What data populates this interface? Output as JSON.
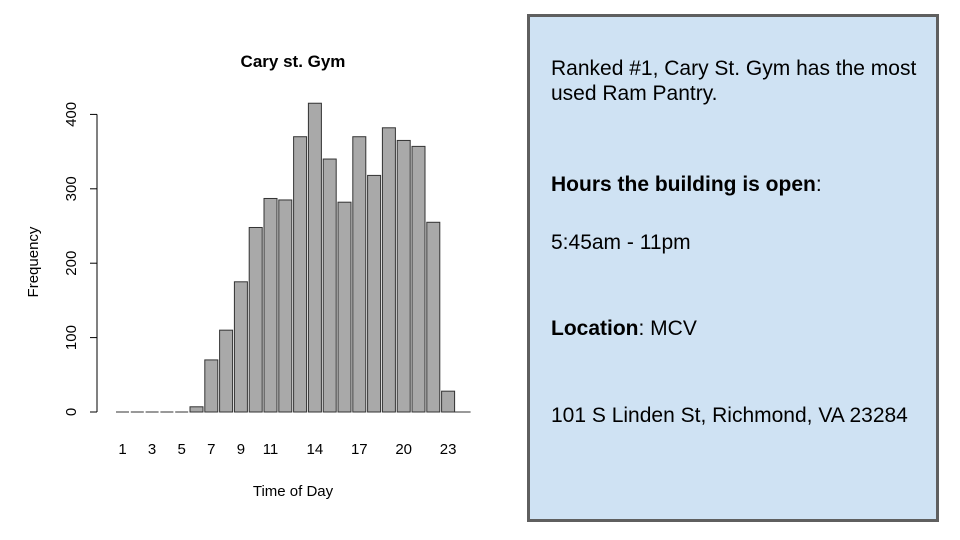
{
  "chart_data": {
    "type": "bar",
    "title": "Cary st. Gym",
    "xlabel": "Time of Day",
    "ylabel": "Frequency",
    "categories": [
      "1",
      "2",
      "3",
      "4",
      "5",
      "6",
      "7",
      "8",
      "9",
      "10",
      "11",
      "12",
      "13",
      "14",
      "15",
      "16",
      "17",
      "18",
      "19",
      "20",
      "21",
      "22",
      "23"
    ],
    "x_tick_labels": [
      "1",
      "3",
      "5",
      "7",
      "9",
      "11",
      "14",
      "17",
      "20",
      "23"
    ],
    "y_ticks": [
      0,
      100,
      200,
      300,
      400
    ],
    "values": [
      0,
      0,
      0,
      0,
      0,
      7,
      70,
      110,
      175,
      248,
      287,
      285,
      370,
      415,
      340,
      282,
      370,
      318,
      382,
      365,
      357,
      255,
      28
    ],
    "ylim": [
      0,
      420
    ],
    "grid": false,
    "colors": {
      "bar_fill": "#a9a9a9",
      "bar_stroke": "#333333"
    }
  },
  "info_panel": {
    "ranking_text": "Ranked #1, Cary St. Gym has the most used Ram Pantry.",
    "hours_label": "Hours the building is open",
    "hours_colon": ":",
    "hours_value": "5:45am - 11pm",
    "location_label": "Location",
    "location_value": ": MCV",
    "address": "101 S Linden St, Richmond, VA 23284",
    "background_color": "#cfe2f3",
    "border_color": "#5f5f5f"
  }
}
